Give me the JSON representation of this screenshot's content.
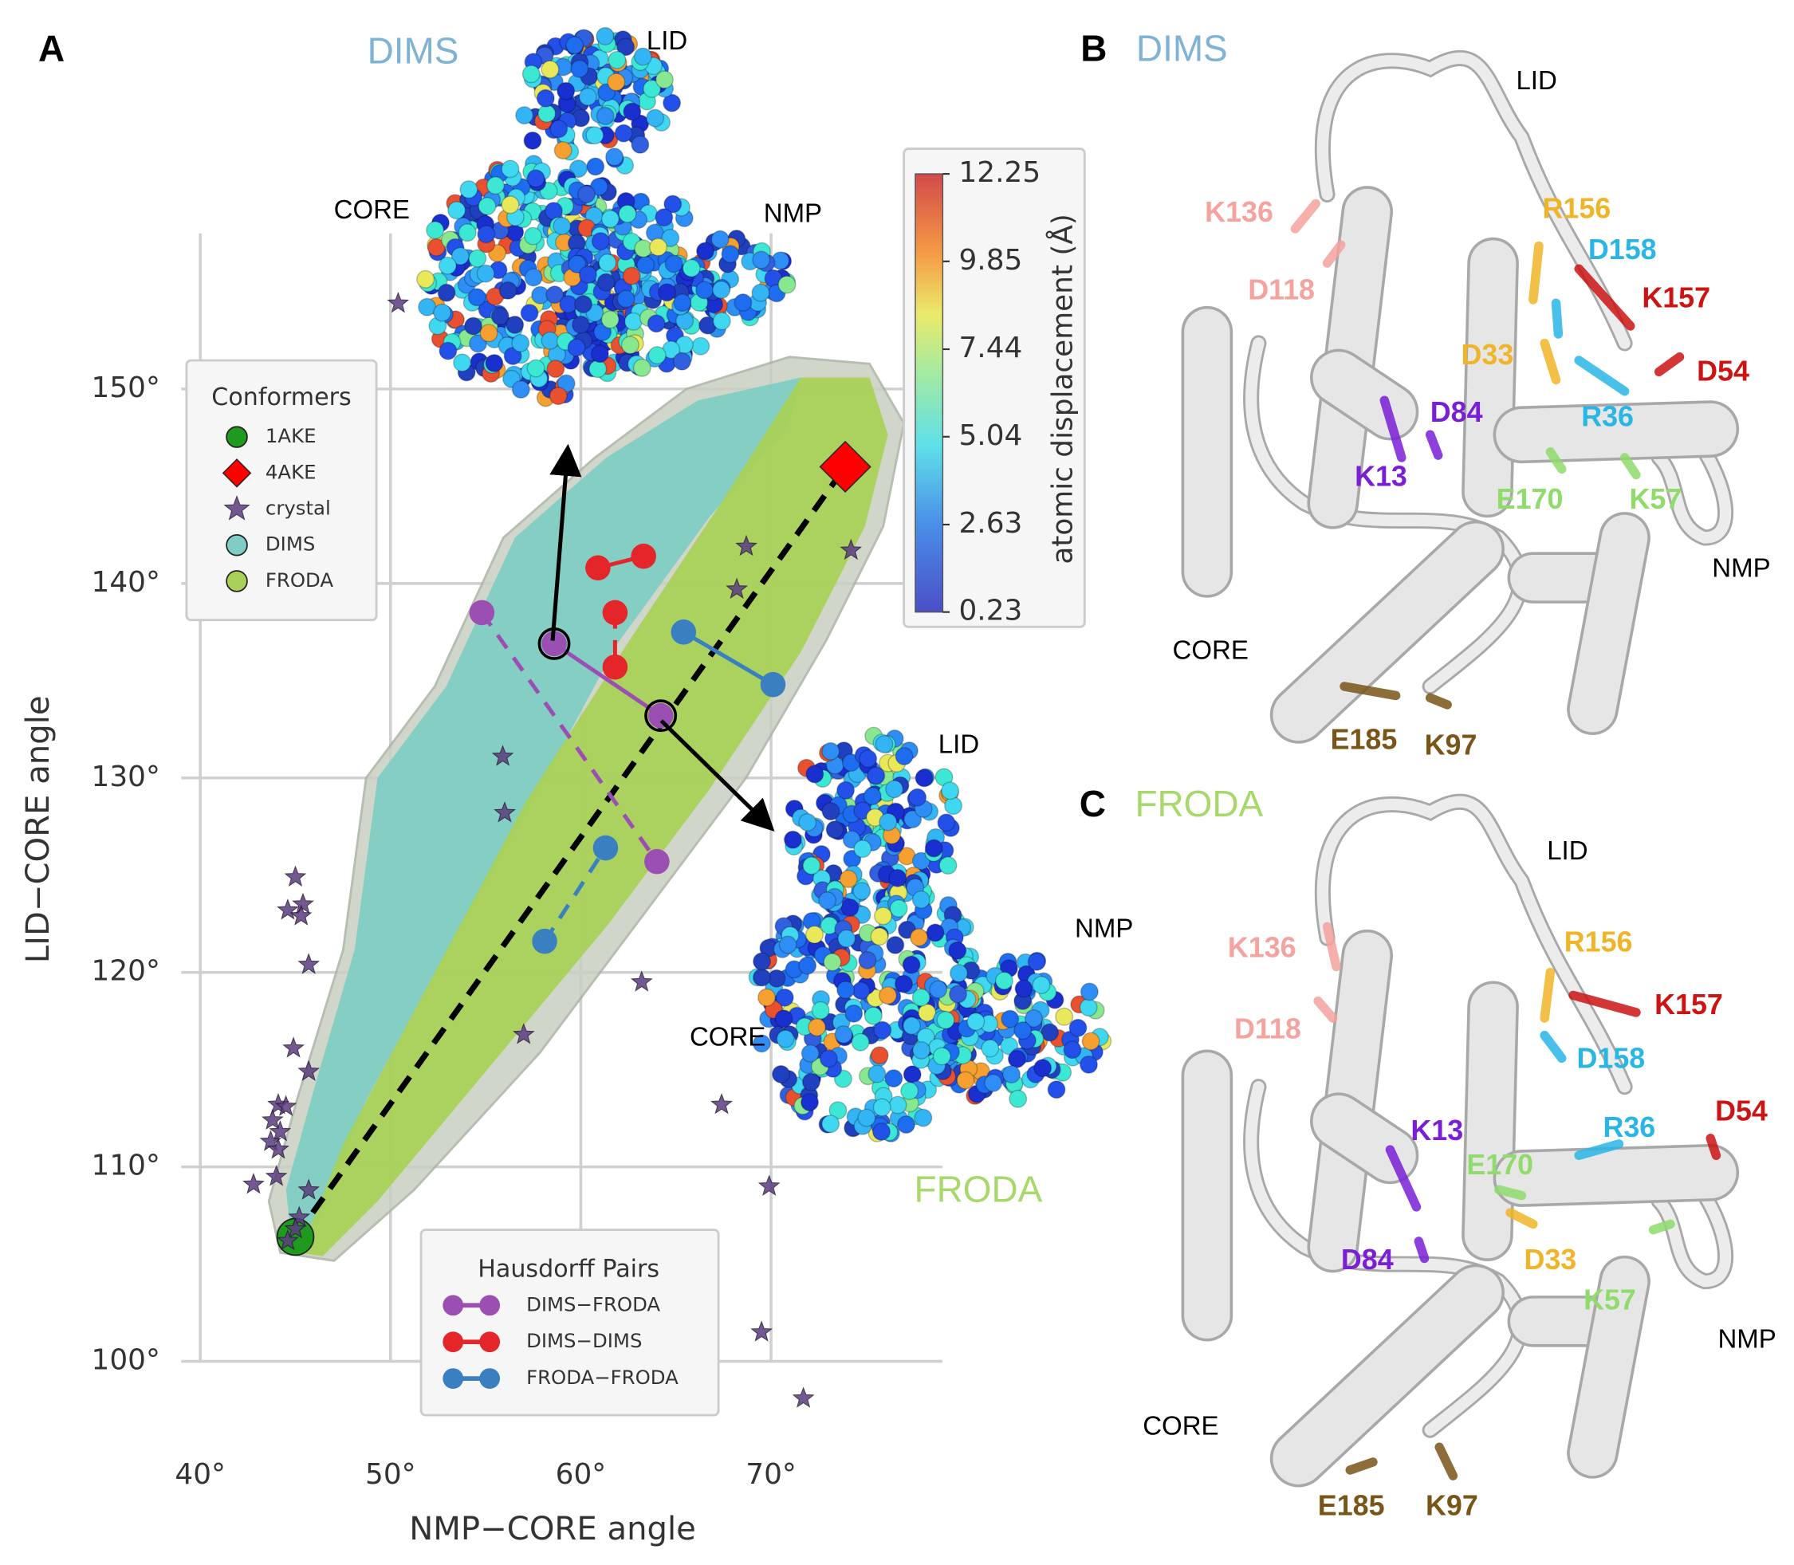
{
  "panel_labels": [
    "A",
    "B",
    "C"
  ],
  "chart_data": {
    "type": "scatter",
    "xlabel": "NMP−CORE angle",
    "ylabel": "LID−CORE angle",
    "xlim": [
      39,
      79
    ],
    "ylim": [
      96,
      158
    ],
    "xticks": [
      {
        "value": 40,
        "label": "40°"
      },
      {
        "value": 50,
        "label": "50°"
      },
      {
        "value": 60,
        "label": "60°"
      },
      {
        "value": 70,
        "label": "70°"
      }
    ],
    "yticks": [
      {
        "value": 100,
        "label": "100°"
      },
      {
        "value": 110,
        "label": "110°"
      },
      {
        "value": 120,
        "label": "120°"
      },
      {
        "value": 130,
        "label": "130°"
      },
      {
        "value": 140,
        "label": "140°"
      },
      {
        "value": 150,
        "label": "150°"
      }
    ],
    "grid": true,
    "legend_title": "Conformers",
    "series": [
      {
        "name": "1AKE",
        "color": "#1f9a1f",
        "marker": "circle",
        "x": [
          45.0
        ],
        "values": [
          106.4
        ]
      },
      {
        "name": "4AKE",
        "color": "#ff0000",
        "marker": "diamond",
        "x": [
          73.9
        ],
        "values": [
          146.0
        ]
      },
      {
        "name": "crystal",
        "color": "#5b3d80",
        "marker": "star",
        "x": [
          50.4,
          68.7,
          74.2,
          68.2,
          55.9,
          56.0,
          57.0,
          63.2,
          67.4,
          69.9,
          69.5,
          71.7,
          45.0,
          44.6,
          45.4,
          45.3,
          45.7,
          44.9,
          45.7,
          44.1,
          44.5,
          43.8,
          44.2,
          43.7,
          44.1,
          44.0,
          42.8,
          45.7,
          45.2,
          45.0,
          44.6
        ],
        "values": [
          154.4,
          141.9,
          141.7,
          139.7,
          131.1,
          128.2,
          116.8,
          119.5,
          113.2,
          109.0,
          101.5,
          98.1,
          124.9,
          123.2,
          123.5,
          122.9,
          120.4,
          116.1,
          114.9,
          113.2,
          113.1,
          112.4,
          111.8,
          111.3,
          110.9,
          109.5,
          109.1,
          108.8,
          107.4,
          106.8,
          106.2
        ]
      }
    ],
    "clouds": [
      {
        "name": "DIMS",
        "color": "#7fcdc4"
      },
      {
        "name": "FRODA",
        "color": "#a9d15a"
      }
    ],
    "pairs_title": "Hausdorff Pairs",
    "pairs": [
      {
        "name": "DIMS−FRODA",
        "color": "#9b4fb3",
        "segments": [
          {
            "x": [
              58.6,
              64.2
            ],
            "values": [
              136.9,
              133.2
            ],
            "dashed": false
          },
          {
            "x": [
              54.8,
              64.0
            ],
            "values": [
              138.5,
              125.7
            ],
            "dashed": true
          }
        ]
      },
      {
        "name": "DIMS−DIMS",
        "color": "#e4262a",
        "segments": [
          {
            "x": [
              60.9,
              63.3
            ],
            "values": [
              140.8,
              141.4
            ],
            "dashed": false
          },
          {
            "x": [
              61.8,
              61.8
            ],
            "values": [
              138.5,
              135.7
            ],
            "dashed": true
          }
        ]
      },
      {
        "name": "FRODA−FRODA",
        "color": "#3a7fbf",
        "segments": [
          {
            "x": [
              65.4,
              70.1
            ],
            "values": [
              137.5,
              134.8
            ],
            "dashed": false
          },
          {
            "x": [
              58.1,
              61.3
            ],
            "values": [
              121.6,
              126.4
            ],
            "dashed": true
          }
        ]
      }
    ],
    "colorbar": {
      "label": "atomic displacement (Å)",
      "clim": [
        0.23,
        12.25
      ],
      "ticks": [
        0.23,
        2.63,
        5.04,
        7.44,
        9.85,
        12.25
      ]
    }
  },
  "insets": [
    {
      "title": "DIMS",
      "color": "#7fb3d5",
      "domains": [
        "LID",
        "CORE",
        "NMP"
      ]
    },
    {
      "title": "FRODA",
      "color": "#a6d96a",
      "domains": [
        "LID",
        "NMP",
        "CORE"
      ]
    }
  ],
  "structures": [
    {
      "title": "DIMS",
      "color": "#7fb3d5",
      "domains": [
        "LID",
        "NMP",
        "CORE"
      ],
      "residues": [
        {
          "label": "K136",
          "color": "#f4a39e"
        },
        {
          "label": "D118",
          "color": "#f4a39e"
        },
        {
          "label": "R156",
          "color": "#f0b428"
        },
        {
          "label": "D158",
          "color": "#29b6e6"
        },
        {
          "label": "K157",
          "color": "#cc1414"
        },
        {
          "label": "D33",
          "color": "#f0b428"
        },
        {
          "label": "D54",
          "color": "#cc1414"
        },
        {
          "label": "D84",
          "color": "#7a1fd6"
        },
        {
          "label": "R36",
          "color": "#29b6e6"
        },
        {
          "label": "K13",
          "color": "#7a1fd6"
        },
        {
          "label": "E170",
          "color": "#8fdc6c"
        },
        {
          "label": "K57",
          "color": "#8fdc6c"
        },
        {
          "label": "E185",
          "color": "#7a5518"
        },
        {
          "label": "K97",
          "color": "#7a5518"
        }
      ]
    },
    {
      "title": "FRODA",
      "color": "#a6d96a",
      "domains": [
        "LID",
        "NMP",
        "CORE"
      ],
      "residues": [
        {
          "label": "K136",
          "color": "#f4a39e"
        },
        {
          "label": "D118",
          "color": "#f4a39e"
        },
        {
          "label": "R156",
          "color": "#f0b428"
        },
        {
          "label": "K157",
          "color": "#cc1414"
        },
        {
          "label": "D158",
          "color": "#29b6e6"
        },
        {
          "label": "K13",
          "color": "#7a1fd6"
        },
        {
          "label": "R36",
          "color": "#29b6e6"
        },
        {
          "label": "D54",
          "color": "#cc1414"
        },
        {
          "label": "E170",
          "color": "#8fdc6c"
        },
        {
          "label": "D84",
          "color": "#7a1fd6"
        },
        {
          "label": "D33",
          "color": "#f0b428"
        },
        {
          "label": "K57",
          "color": "#8fdc6c"
        },
        {
          "label": "E185",
          "color": "#7a5518"
        },
        {
          "label": "K97",
          "color": "#7a5518"
        }
      ]
    }
  ]
}
